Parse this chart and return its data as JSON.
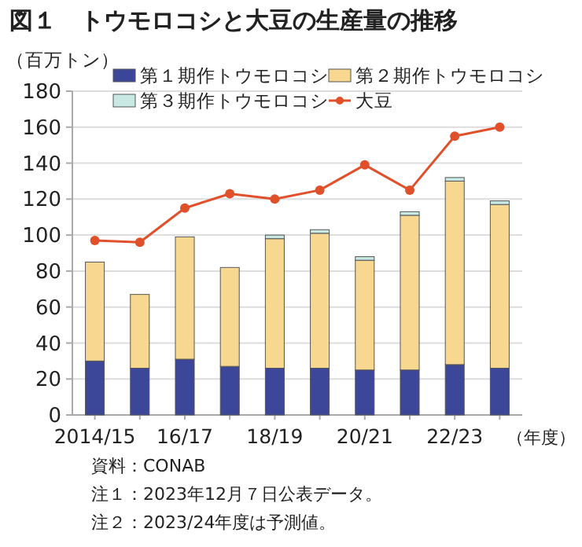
{
  "chart_data": {
    "type": "bar",
    "stacked": true,
    "title": "図１　トウモロコシと大豆の生産量の推移",
    "ylabel": "（百万トン）",
    "xlabel": "（年度）",
    "categories": [
      "2014/15",
      null,
      "16/17",
      null,
      "18/19",
      null,
      "20/21",
      null,
      "22/23",
      null
    ],
    "series": [
      {
        "name": "第１期作トウモロコシ",
        "color": "#3c4799",
        "values": [
          30,
          26,
          31,
          27,
          26,
          26,
          25,
          25,
          28,
          26
        ]
      },
      {
        "name": "第２期作トウモロコシ",
        "color": "#f8d890",
        "values": [
          55,
          41,
          68,
          55,
          72,
          75,
          61,
          86,
          102,
          91
        ]
      },
      {
        "name": "第３期作トウモロコシ",
        "color": "#c8e8e4",
        "values": [
          0,
          0,
          0,
          0,
          2,
          2,
          2,
          2,
          2,
          2
        ]
      },
      {
        "name": "大豆",
        "type": "line",
        "color": "#e0502a",
        "marker": "circle",
        "values": [
          97,
          96,
          115,
          123,
          120,
          125,
          139,
          125,
          155,
          160
        ]
      }
    ],
    "ylim": [
      0,
      180
    ],
    "yticks": [
      0,
      20,
      40,
      60,
      80,
      100,
      120,
      140,
      160,
      180
    ],
    "grid": "y",
    "legend": "top",
    "annotations": [
      "資料：CONAB",
      "注１：2023年12月７日公表データ。",
      "注２：2023/24年度は予測値。"
    ]
  }
}
